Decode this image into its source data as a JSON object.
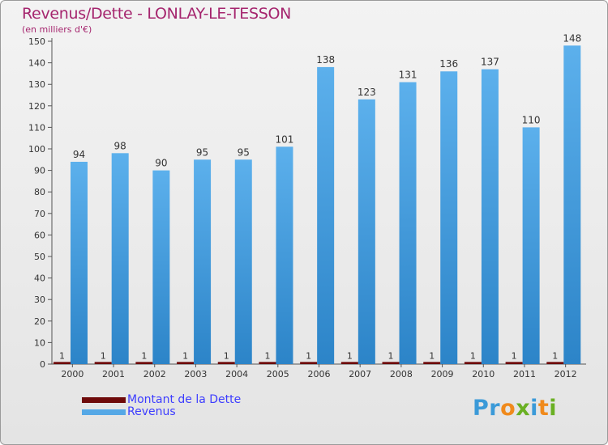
{
  "header": {
    "title": "Revenus/Dette - LONLAY-LE-TESSON",
    "subtitle": "(en milliers d'€)"
  },
  "brand": {
    "logo_text": "Proxiti"
  },
  "colors": {
    "revenus": "#55a8e6",
    "revenus_dark": "#2f86cc",
    "dette": "#6e0a0a",
    "axis": "#555555"
  },
  "chart_data": {
    "type": "bar",
    "title": "Revenus/Dette - LONLAY-LE-TESSON",
    "ylabel": "(en milliers d'€)",
    "xlabel": "",
    "ylim": [
      0,
      150
    ],
    "ytick_step": 10,
    "categories": [
      "2000",
      "2001",
      "2002",
      "2003",
      "2004",
      "2005",
      "2006",
      "2007",
      "2008",
      "2009",
      "2010",
      "2011",
      "2012"
    ],
    "series": [
      {
        "name": "Montant de la Dette",
        "values": [
          1,
          1,
          1,
          1,
          1,
          1,
          1,
          1,
          1,
          1,
          1,
          1,
          1
        ]
      },
      {
        "name": "Revenus",
        "values": [
          94,
          98,
          90,
          95,
          95,
          101,
          138,
          123,
          131,
          136,
          137,
          110,
          148
        ]
      }
    ],
    "legend_position": "bottom-left"
  }
}
